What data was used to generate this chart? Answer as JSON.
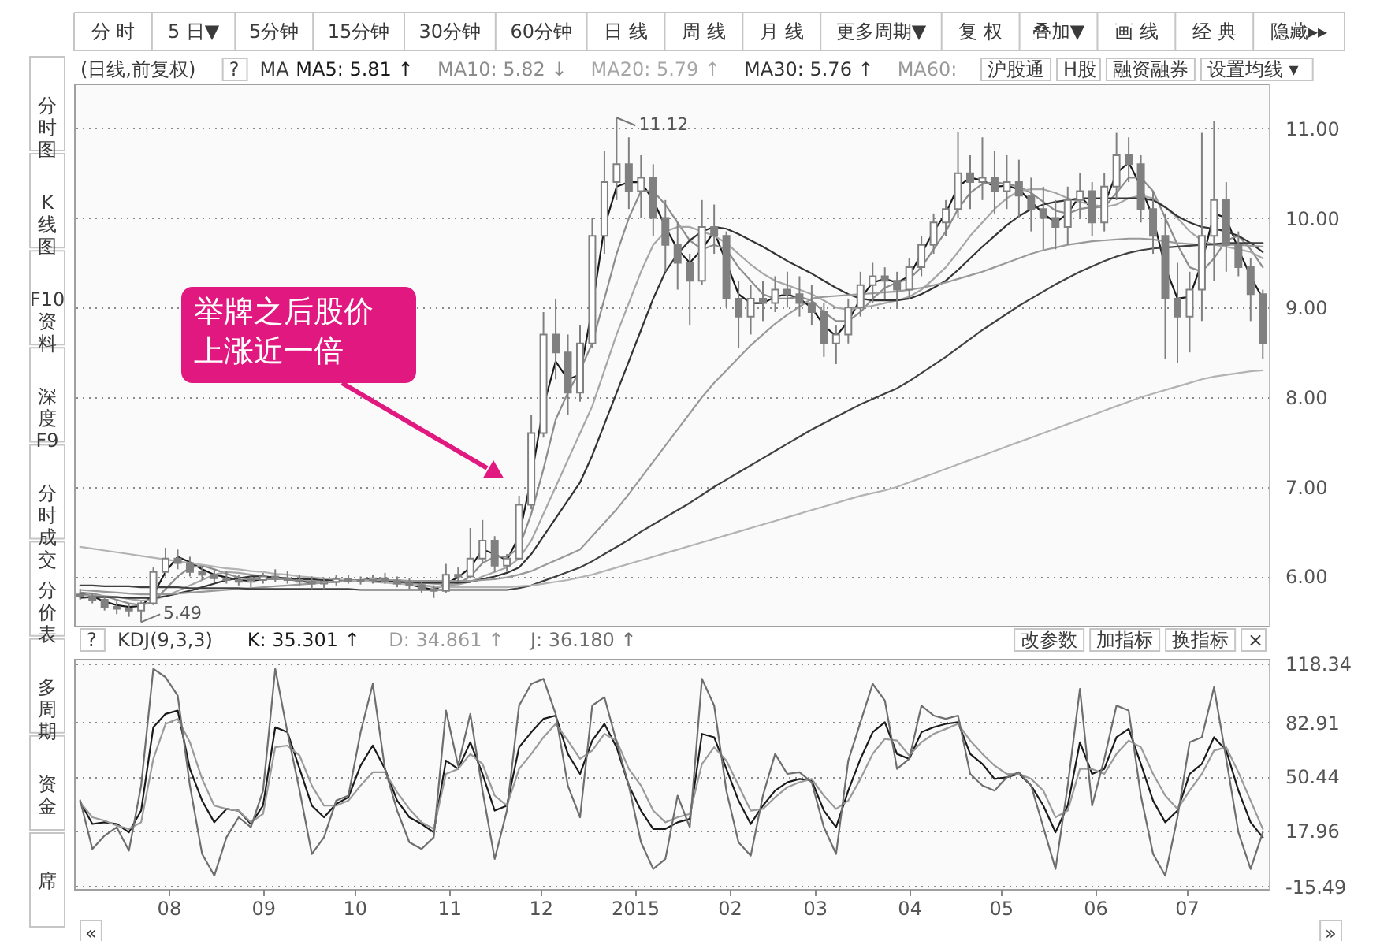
{
  "chart_data": [
    {
      "type": "other",
      "annotations": [
        "分 时",
        "5 日▼",
        "5分钟",
        "15分钟",
        "30分钟",
        "60分钟",
        "日 线",
        "周 线",
        "月 线",
        "更多周期▼",
        "复 权",
        "叠加▼",
        "画 线",
        "经 典",
        "隐藏▸▸"
      ]
    },
    {
      "type": "other",
      "annotations": [
        "分时图",
        "K线图",
        "F10资料",
        "深度F9",
        "分时成交",
        "分价表",
        "多周期",
        "资金",
        "席"
      ]
    },
    {
      "type": "candlestick",
      "title": "(日线,前复权)",
      "legend_title": "MA",
      "color": "#808080",
      "x": [
        "2014-07-03",
        "2014-07-07",
        "2014-07-11",
        "2014-07-15",
        "2014-07-19",
        "2014-07-23",
        "2014-07-27",
        "2014-07-31",
        "2014-08-04",
        "2014-08-08",
        "2014-08-12",
        "2014-08-16",
        "2014-08-20",
        "2014-08-24",
        "2014-08-28",
        "2014-09-01",
        "2014-09-05",
        "2014-09-09",
        "2014-09-13",
        "2014-09-17",
        "2014-09-21",
        "2014-09-25",
        "2014-09-29",
        "2014-10-03",
        "2014-10-07",
        "2014-10-11",
        "2014-10-15",
        "2014-10-19",
        "2014-10-23",
        "2014-10-27",
        "2014-10-31",
        "2014-11-04",
        "2014-11-08",
        "2014-11-12",
        "2014-11-16",
        "2014-11-20",
        "2014-11-24",
        "2014-11-28",
        "2014-12-02",
        "2014-12-06",
        "2014-12-10",
        "2014-12-14",
        "2014-12-18",
        "2014-12-22",
        "2014-12-26",
        "2014-12-30",
        "2015-01-03",
        "2015-01-07",
        "2015-01-11",
        "2015-01-15",
        "2015-01-19",
        "2015-01-23",
        "2015-01-27",
        "2015-01-31",
        "2015-02-04",
        "2015-02-08",
        "2015-02-12",
        "2015-02-16",
        "2015-02-20",
        "2015-02-24",
        "2015-02-28",
        "2015-03-04",
        "2015-03-08",
        "2015-03-12",
        "2015-03-16",
        "2015-03-20",
        "2015-03-24",
        "2015-03-28",
        "2015-04-01",
        "2015-04-05",
        "2015-04-09",
        "2015-04-13",
        "2015-04-17",
        "2015-04-21",
        "2015-04-25",
        "2015-04-29",
        "2015-05-03",
        "2015-05-07",
        "2015-05-11",
        "2015-05-15",
        "2015-05-19",
        "2015-05-23",
        "2015-05-27",
        "2015-05-31",
        "2015-06-04",
        "2015-06-08",
        "2015-06-12",
        "2015-06-16",
        "2015-06-20",
        "2015-06-24",
        "2015-06-28",
        "2015-07-02",
        "2015-07-06",
        "2015-07-10",
        "2015-07-14",
        "2015-07-18",
        "2015-07-22",
        "2015-07-26"
      ],
      "ohlc": [
        [
          5.8,
          5.86,
          5.74,
          5.78
        ],
        [
          5.78,
          5.82,
          5.7,
          5.74
        ],
        [
          5.74,
          5.78,
          5.62,
          5.66
        ],
        [
          5.66,
          5.72,
          5.58,
          5.64
        ],
        [
          5.64,
          5.7,
          5.55,
          5.62
        ],
        [
          5.62,
          5.72,
          5.49,
          5.7
        ],
        [
          5.7,
          6.1,
          5.68,
          6.05
        ],
        [
          6.05,
          6.32,
          6.0,
          6.2
        ],
        [
          6.2,
          6.3,
          6.08,
          6.15
        ],
        [
          6.15,
          6.22,
          6.0,
          6.05
        ],
        [
          6.05,
          6.12,
          5.96,
          6.02
        ],
        [
          6.02,
          6.08,
          5.94,
          5.98
        ],
        [
          5.98,
          6.06,
          5.92,
          5.96
        ],
        [
          5.96,
          6.02,
          5.9,
          5.94
        ],
        [
          5.94,
          6.0,
          5.88,
          5.96
        ],
        [
          5.96,
          6.04,
          5.92,
          6.0
        ],
        [
          6.0,
          6.08,
          5.94,
          5.98
        ],
        [
          5.98,
          6.06,
          5.92,
          5.96
        ],
        [
          5.96,
          6.02,
          5.9,
          5.94
        ],
        [
          5.94,
          6.0,
          5.86,
          5.92
        ],
        [
          5.92,
          5.98,
          5.86,
          5.94
        ],
        [
          5.94,
          6.02,
          5.9,
          5.97
        ],
        [
          5.97,
          6.02,
          5.92,
          5.95
        ],
        [
          5.95,
          6.0,
          5.91,
          5.96
        ],
        [
          5.96,
          6.02,
          5.92,
          5.98
        ],
        [
          5.98,
          6.04,
          5.92,
          5.95
        ],
        [
          5.95,
          6.0,
          5.88,
          5.92
        ],
        [
          5.92,
          5.98,
          5.86,
          5.9
        ],
        [
          5.9,
          5.94,
          5.82,
          5.86
        ],
        [
          5.86,
          5.9,
          5.76,
          5.84
        ],
        [
          5.84,
          6.14,
          5.82,
          6.02
        ],
        [
          6.02,
          6.1,
          5.94,
          6.0
        ],
        [
          6.0,
          6.54,
          5.98,
          6.2
        ],
        [
          6.2,
          6.63,
          6.15,
          6.4
        ],
        [
          6.4,
          6.45,
          6.05,
          6.12
        ],
        [
          6.12,
          6.25,
          6.05,
          6.2
        ],
        [
          6.2,
          6.9,
          6.18,
          6.8
        ],
        [
          6.8,
          7.8,
          6.75,
          7.6
        ],
        [
          7.6,
          8.95,
          7.55,
          8.7
        ],
        [
          8.7,
          9.1,
          8.2,
          8.5
        ],
        [
          8.5,
          8.7,
          7.8,
          8.05
        ],
        [
          8.05,
          8.8,
          7.95,
          8.6
        ],
        [
          8.6,
          10.0,
          8.55,
          9.8
        ],
        [
          9.8,
          10.75,
          9.6,
          10.4
        ],
        [
          10.4,
          11.12,
          10.2,
          10.6
        ],
        [
          10.6,
          10.9,
          10.1,
          10.3
        ],
        [
          10.3,
          10.7,
          10.0,
          10.45
        ],
        [
          10.45,
          10.6,
          9.8,
          10.0
        ],
        [
          10.0,
          10.2,
          9.4,
          9.7
        ],
        [
          9.7,
          9.95,
          9.2,
          9.5
        ],
        [
          9.5,
          9.6,
          8.8,
          9.3
        ],
        [
          9.3,
          10.2,
          9.25,
          9.9
        ],
        [
          9.9,
          10.15,
          9.6,
          9.8
        ],
        [
          9.8,
          9.85,
          9.0,
          9.1
        ],
        [
          9.1,
          9.3,
          8.55,
          8.9
        ],
        [
          8.9,
          9.25,
          8.7,
          9.1
        ],
        [
          9.1,
          9.3,
          8.85,
          9.05
        ],
        [
          9.05,
          9.35,
          8.95,
          9.2
        ],
        [
          9.2,
          9.4,
          9.0,
          9.15
        ],
        [
          9.15,
          9.35,
          8.9,
          9.05
        ],
        [
          9.05,
          9.25,
          8.8,
          8.95
        ],
        [
          8.95,
          9.05,
          8.45,
          8.6
        ],
        [
          8.6,
          8.8,
          8.37,
          8.7
        ],
        [
          8.7,
          9.1,
          8.6,
          9.0
        ],
        [
          9.0,
          9.4,
          8.9,
          9.25
        ],
        [
          9.25,
          9.5,
          9.05,
          9.35
        ],
        [
          9.35,
          9.45,
          9.1,
          9.3
        ],
        [
          9.3,
          9.4,
          9.0,
          9.2
        ],
        [
          9.2,
          9.55,
          9.1,
          9.45
        ],
        [
          9.45,
          9.8,
          9.35,
          9.7
        ],
        [
          9.7,
          10.05,
          9.6,
          9.95
        ],
        [
          9.95,
          10.2,
          9.8,
          10.1
        ],
        [
          10.1,
          10.96,
          10.0,
          10.5
        ],
        [
          10.5,
          10.7,
          10.1,
          10.4
        ],
        [
          10.4,
          10.9,
          10.2,
          10.45
        ],
        [
          10.45,
          10.75,
          10.05,
          10.3
        ],
        [
          10.3,
          10.7,
          10.1,
          10.4
        ],
        [
          10.4,
          10.65,
          10.0,
          10.25
        ],
        [
          10.25,
          10.45,
          9.85,
          10.1
        ],
        [
          10.1,
          10.35,
          9.65,
          10.0
        ],
        [
          10.0,
          10.2,
          9.65,
          9.9
        ],
        [
          9.9,
          10.35,
          9.7,
          10.2
        ],
        [
          10.2,
          10.5,
          10.0,
          10.3
        ],
        [
          10.3,
          10.4,
          9.8,
          9.95
        ],
        [
          9.95,
          10.5,
          9.85,
          10.35
        ],
        [
          10.35,
          10.95,
          10.2,
          10.7
        ],
        [
          10.7,
          10.9,
          10.4,
          10.6
        ],
        [
          10.6,
          10.7,
          9.95,
          10.1
        ],
        [
          10.1,
          10.3,
          9.6,
          9.8
        ],
        [
          9.8,
          10.05,
          8.43,
          9.1
        ],
        [
          9.1,
          9.5,
          8.38,
          8.9
        ],
        [
          8.9,
          9.4,
          8.5,
          9.2
        ],
        [
          9.2,
          10.95,
          8.85,
          9.8
        ],
        [
          9.8,
          11.08,
          9.3,
          10.2
        ],
        [
          10.2,
          10.4,
          9.4,
          9.7
        ],
        [
          9.7,
          9.85,
          9.35,
          9.45
        ],
        [
          9.45,
          9.55,
          8.85,
          9.15
        ],
        [
          9.15,
          9.2,
          8.43,
          8.6
        ]
      ],
      "series": [
        {
          "type": "line",
          "name": "MA5: 5.81 ↑",
          "color": "#1a1a1a",
          "values": [
            5.81,
            5.78,
            5.72,
            5.68,
            5.66,
            5.67,
            5.8,
            6.05,
            6.22,
            6.16,
            6.08,
            6.02,
            5.99,
            5.96,
            5.95,
            5.97,
            5.98,
            5.97,
            5.95,
            5.93,
            5.93,
            5.95,
            5.96,
            5.96,
            5.97,
            5.96,
            5.93,
            5.91,
            5.88,
            5.85,
            5.92,
            5.99,
            6.1,
            6.3,
            6.25,
            6.18,
            6.45,
            7.1,
            7.9,
            8.4,
            8.2,
            8.25,
            9.0,
            9.9,
            10.35,
            10.4,
            10.4,
            10.2,
            9.9,
            9.65,
            9.5,
            9.65,
            9.85,
            9.5,
            9.15,
            9.05,
            9.05,
            9.12,
            9.15,
            9.1,
            9.0,
            8.8,
            8.68,
            8.85,
            9.1,
            9.28,
            9.32,
            9.28,
            9.35,
            9.6,
            9.85,
            10.05,
            10.35,
            10.45,
            10.42,
            10.35,
            10.36,
            10.32,
            10.18,
            10.05,
            9.95,
            10.05,
            10.25,
            10.1,
            10.15,
            10.5,
            10.62,
            10.35,
            10.0,
            9.45,
            9.1,
            9.12,
            9.5,
            10.05,
            10.0,
            9.65,
            9.35,
            9.1
          ]
        },
        {
          "type": "line",
          "name": "MA10: 5.82 ↓",
          "color": "#8c8c8c",
          "values": [
            5.82,
            5.81,
            5.78,
            5.74,
            5.7,
            5.68,
            5.72,
            5.86,
            6.0,
            6.1,
            6.12,
            6.08,
            6.03,
            5.99,
            5.97,
            5.97,
            5.97,
            5.97,
            5.96,
            5.95,
            5.94,
            5.94,
            5.95,
            5.96,
            5.96,
            5.96,
            5.95,
            5.93,
            5.91,
            5.88,
            5.89,
            5.92,
            6.0,
            6.15,
            6.22,
            6.22,
            6.32,
            6.7,
            7.2,
            7.75,
            8.05,
            8.3,
            8.6,
            9.1,
            9.6,
            10.0,
            10.3,
            10.3,
            10.15,
            9.95,
            9.75,
            9.65,
            9.7,
            9.65,
            9.45,
            9.3,
            9.15,
            9.1,
            9.1,
            9.12,
            9.08,
            8.95,
            8.85,
            8.85,
            8.95,
            9.1,
            9.22,
            9.28,
            9.32,
            9.45,
            9.65,
            9.85,
            10.1,
            10.28,
            10.38,
            10.4,
            10.38,
            10.35,
            10.28,
            10.18,
            10.08,
            10.05,
            10.1,
            10.12,
            10.12,
            10.28,
            10.45,
            10.45,
            10.3,
            10.0,
            9.7,
            9.45,
            9.4,
            9.55,
            9.75,
            9.8,
            9.65,
            9.45
          ]
        },
        {
          "type": "line",
          "name": "MA20: 5.79 ↑",
          "color": "#a6a6a6",
          "values": [
            5.79,
            5.79,
            5.78,
            5.77,
            5.75,
            5.73,
            5.74,
            5.78,
            5.84,
            5.9,
            5.96,
            6.02,
            6.05,
            6.04,
            6.02,
            6.0,
            5.98,
            5.97,
            5.96,
            5.96,
            5.95,
            5.95,
            5.95,
            5.95,
            5.95,
            5.95,
            5.95,
            5.94,
            5.93,
            5.92,
            5.91,
            5.91,
            5.94,
            6.0,
            6.05,
            6.1,
            6.2,
            6.4,
            6.7,
            7.0,
            7.3,
            7.6,
            7.9,
            8.3,
            8.7,
            9.05,
            9.4,
            9.7,
            9.85,
            9.9,
            9.9,
            9.85,
            9.8,
            9.72,
            9.6,
            9.48,
            9.38,
            9.3,
            9.25,
            9.2,
            9.15,
            9.08,
            9.0,
            8.98,
            9.0,
            9.02,
            9.05,
            9.08,
            9.12,
            9.2,
            9.32,
            9.45,
            9.62,
            9.8,
            9.95,
            10.1,
            10.22,
            10.3,
            10.32,
            10.32,
            10.28,
            10.22,
            10.18,
            10.15,
            10.12,
            10.15,
            10.22,
            10.25,
            10.22,
            10.12,
            10.0,
            9.85,
            9.75,
            9.7,
            9.68,
            9.65,
            9.62,
            9.55
          ]
        },
        {
          "type": "line",
          "name": "MA30: 5.76 ↑",
          "color": "#333333",
          "values": [
            5.76,
            5.77,
            5.77,
            5.77,
            5.76,
            5.76,
            5.76,
            5.78,
            5.81,
            5.84,
            5.88,
            5.92,
            5.96,
            5.98,
            6.0,
            6.0,
            5.99,
            5.98,
            5.97,
            5.97,
            5.96,
            5.96,
            5.95,
            5.95,
            5.95,
            5.95,
            5.94,
            5.94,
            5.93,
            5.93,
            5.93,
            5.93,
            5.94,
            5.97,
            6.0,
            6.04,
            6.1,
            6.25,
            6.45,
            6.65,
            6.85,
            7.05,
            7.35,
            7.7,
            8.05,
            8.4,
            8.75,
            9.1,
            9.4,
            9.6,
            9.75,
            9.85,
            9.9,
            9.88,
            9.82,
            9.75,
            9.68,
            9.6,
            9.52,
            9.45,
            9.38,
            9.3,
            9.22,
            9.15,
            9.1,
            9.08,
            9.08,
            9.08,
            9.1,
            9.15,
            9.22,
            9.3,
            9.42,
            9.55,
            9.68,
            9.8,
            9.92,
            10.02,
            10.1,
            10.15,
            10.18,
            10.2,
            10.22,
            10.22,
            10.22,
            10.22,
            10.22,
            10.22,
            10.2,
            10.12,
            10.02,
            9.95,
            9.9,
            9.88,
            9.85,
            9.8,
            9.72,
            9.62
          ]
        },
        {
          "type": "line",
          "name": "MA60:",
          "color": "#999999",
          "values": [
            5.85,
            5.84,
            5.83,
            5.82,
            5.81,
            5.8,
            5.8,
            5.8,
            5.81,
            5.82,
            5.83,
            5.84,
            5.85,
            5.86,
            5.87,
            5.88,
            5.89,
            5.9,
            5.91,
            5.92,
            5.93,
            5.94,
            5.95,
            5.95,
            5.96,
            5.96,
            5.96,
            5.95,
            5.95,
            5.95,
            5.95,
            5.95,
            5.95,
            5.96,
            5.97,
            5.99,
            6.02,
            6.06,
            6.12,
            6.18,
            6.24,
            6.3,
            6.45,
            6.6,
            6.75,
            6.92,
            7.1,
            7.28,
            7.46,
            7.64,
            7.82,
            8.0,
            8.16,
            8.3,
            8.44,
            8.58,
            8.7,
            8.82,
            8.92,
            9.01,
            9.1,
            9.12,
            9.13,
            9.14,
            9.15,
            9.16,
            9.17,
            9.18,
            9.2,
            9.22,
            9.25,
            9.28,
            9.32,
            9.36,
            9.4,
            9.45,
            9.5,
            9.55,
            9.6,
            9.64,
            9.67,
            9.7,
            9.72,
            9.74,
            9.75,
            9.76,
            9.77,
            9.77,
            9.76,
            9.74,
            9.72,
            9.71,
            9.7,
            9.7,
            9.7,
            9.7,
            9.69,
            9.68
          ]
        },
        {
          "type": "line",
          "color": "#404040",
          "values": [
            5.9,
            5.9,
            5.89,
            5.89,
            5.89,
            5.88,
            5.88,
            5.88,
            5.88,
            5.87,
            5.87,
            5.87,
            5.87,
            5.87,
            5.86,
            5.86,
            5.86,
            5.86,
            5.86,
            5.86,
            5.86,
            5.86,
            5.86,
            5.85,
            5.85,
            5.85,
            5.85,
            5.85,
            5.85,
            5.85,
            5.85,
            5.85,
            5.85,
            5.85,
            5.85,
            5.85,
            5.87,
            5.9,
            5.95,
            6.0,
            6.05,
            6.1,
            6.17,
            6.25,
            6.33,
            6.41,
            6.5,
            6.58,
            6.66,
            6.74,
            6.82,
            6.91,
            7.0,
            7.08,
            7.16,
            7.24,
            7.32,
            7.4,
            7.48,
            7.56,
            7.64,
            7.71,
            7.78,
            7.85,
            7.92,
            7.98,
            8.04,
            8.1,
            8.18,
            8.27,
            8.36,
            8.45,
            8.55,
            8.65,
            8.75,
            8.84,
            8.93,
            9.02,
            9.1,
            9.18,
            9.26,
            9.33,
            9.4,
            9.46,
            9.52,
            9.57,
            9.61,
            9.64,
            9.66,
            9.67,
            9.68,
            9.69,
            9.7,
            9.71,
            9.72,
            9.72,
            9.72,
            9.72
          ]
        },
        {
          "type": "line",
          "color": "#b3b3b3",
          "values": [
            6.33,
            6.31,
            6.29,
            6.27,
            6.25,
            6.23,
            6.21,
            6.19,
            6.17,
            6.15,
            6.13,
            6.11,
            6.09,
            6.08,
            6.06,
            6.05,
            6.03,
            6.02,
            6.0,
            5.99,
            5.98,
            5.97,
            5.96,
            5.95,
            5.94,
            5.93,
            5.92,
            5.91,
            5.9,
            5.89,
            5.88,
            5.88,
            5.88,
            5.88,
            5.88,
            5.88,
            5.89,
            5.9,
            5.92,
            5.94,
            5.96,
            5.99,
            6.02,
            6.06,
            6.1,
            6.14,
            6.18,
            6.22,
            6.26,
            6.3,
            6.34,
            6.38,
            6.42,
            6.46,
            6.5,
            6.54,
            6.58,
            6.62,
            6.66,
            6.7,
            6.74,
            6.78,
            6.82,
            6.86,
            6.9,
            6.93,
            6.96,
            7.0,
            7.05,
            7.1,
            7.15,
            7.2,
            7.25,
            7.3,
            7.35,
            7.4,
            7.45,
            7.5,
            7.55,
            7.6,
            7.65,
            7.7,
            7.75,
            7.8,
            7.85,
            7.9,
            7.95,
            8.0,
            8.04,
            8.08,
            8.12,
            8.16,
            8.2,
            8.23,
            8.25,
            8.27,
            8.29,
            8.3
          ]
        }
      ],
      "xlim": [
        "2014-07-01",
        "2015-07-28"
      ],
      "ylim": [
        5.45,
        11.5
      ],
      "yticks": [
        {
          "value": 6,
          "label": "6.00"
        },
        {
          "value": 7,
          "label": "7.00"
        },
        {
          "value": 8,
          "label": "8.00"
        },
        {
          "value": 9,
          "label": "9.00"
        },
        {
          "value": 10,
          "label": "10.00"
        },
        {
          "value": 11,
          "label": "11.00"
        }
      ],
      "grid": "y",
      "legend": "top left",
      "tick_labels": "y",
      "annotations": [
        "举牌之后股价上涨近一倍",
        "?",
        "沪股通",
        "H股",
        "融资融券",
        "设置均线 ▾",
        {
          "text": "11.12",
          "x": "2014-12-26",
          "y": 11.12
        },
        {
          "text": "5.49",
          "x": "2014-07-23",
          "y": 5.49
        }
      ]
    },
    {
      "type": "line",
      "title": "KDJ(9,3,3)",
      "x": [
        "2014-07-03",
        "2014-07-07",
        "2014-07-11",
        "2014-07-15",
        "2014-07-19",
        "2014-07-23",
        "2014-07-27",
        "2014-07-31",
        "2014-08-04",
        "2014-08-08",
        "2014-08-12",
        "2014-08-16",
        "2014-08-20",
        "2014-08-24",
        "2014-08-28",
        "2014-09-01",
        "2014-09-05",
        "2014-09-09",
        "2014-09-13",
        "2014-09-17",
        "2014-09-21",
        "2014-09-25",
        "2014-09-29",
        "2014-10-03",
        "2014-10-07",
        "2014-10-11",
        "2014-10-15",
        "2014-10-19",
        "2014-10-23",
        "2014-10-27",
        "2014-10-31",
        "2014-11-04",
        "2014-11-08",
        "2014-11-12",
        "2014-11-16",
        "2014-11-20",
        "2014-11-24",
        "2014-11-28",
        "2014-12-02",
        "2014-12-06",
        "2014-12-10",
        "2014-12-14",
        "2014-12-18",
        "2014-12-22",
        "2014-12-26",
        "2014-12-30",
        "2015-01-03",
        "2015-01-07",
        "2015-01-11",
        "2015-01-15",
        "2015-01-19",
        "2015-01-23",
        "2015-01-27",
        "2015-01-31",
        "2015-02-04",
        "2015-02-08",
        "2015-02-12",
        "2015-02-16",
        "2015-02-20",
        "2015-02-24",
        "2015-02-28",
        "2015-03-04",
        "2015-03-08",
        "2015-03-12",
        "2015-03-16",
        "2015-03-20",
        "2015-03-24",
        "2015-03-28",
        "2015-04-01",
        "2015-04-05",
        "2015-04-09",
        "2015-04-13",
        "2015-04-17",
        "2015-04-21",
        "2015-04-25",
        "2015-04-29",
        "2015-05-03",
        "2015-05-07",
        "2015-05-11",
        "2015-05-15",
        "2015-05-19",
        "2015-05-23",
        "2015-05-27",
        "2015-05-31",
        "2015-06-04",
        "2015-06-08",
        "2015-06-12",
        "2015-06-16",
        "2015-06-20",
        "2015-06-24",
        "2015-06-28",
        "2015-07-02",
        "2015-07-06",
        "2015-07-10",
        "2015-07-14",
        "2015-07-18",
        "2015-07-22",
        "2015-07-26"
      ],
      "series": [
        {
          "name": "K: 35.301 ↑",
          "color": "#1a1a1a",
          "values": [
            35.301,
            22,
            23,
            22,
            17,
            30,
            80,
            88,
            90,
            55,
            36,
            23,
            31,
            30,
            22,
            33,
            80,
            77,
            55,
            33,
            26,
            34,
            38,
            57,
            69,
            55,
            36,
            26,
            22,
            17,
            60,
            55,
            71,
            52,
            30,
            33,
            68,
            77,
            85,
            87,
            64,
            52,
            72,
            82,
            68,
            45,
            30,
            19,
            19,
            23,
            25,
            76,
            74,
            55,
            36,
            22,
            33,
            42,
            47,
            49,
            48,
            30,
            20,
            42,
            61,
            77,
            83,
            64,
            61,
            77,
            80,
            82,
            83,
            64,
            58,
            49,
            50,
            52,
            45,
            33,
            17,
            33,
            71,
            52,
            55,
            74,
            79,
            58,
            36,
            23,
            30,
            52,
            58,
            74,
            66,
            42,
            23,
            14
          ]
        },
        {
          "name": "D: 34.861 ↑",
          "color": "#9a9a9a",
          "values": [
            34.861,
            26,
            24,
            21,
            19,
            23,
            61,
            82,
            85,
            71,
            49,
            33,
            31,
            30,
            23,
            28,
            68,
            69,
            63,
            45,
            33,
            33,
            36,
            45,
            53,
            53,
            41,
            31,
            23,
            19,
            52,
            55,
            64,
            58,
            39,
            33,
            55,
            64,
            74,
            82,
            72,
            61,
            66,
            76,
            72,
            55,
            45,
            30,
            23,
            26,
            28,
            58,
            68,
            60,
            45,
            30,
            31,
            38,
            44,
            47,
            49,
            39,
            31,
            36,
            49,
            64,
            73,
            72,
            63,
            71,
            76,
            79,
            82,
            72,
            64,
            57,
            52,
            52,
            49,
            42,
            26,
            30,
            55,
            55,
            52,
            64,
            72,
            68,
            52,
            39,
            31,
            42,
            52,
            66,
            68,
            53,
            36,
            19
          ]
        },
        {
          "name": "J: 36.180 ↑",
          "color": "#6e6e6e",
          "values": [
            36.18,
            7,
            15,
            20,
            6,
            45,
            115,
            110,
            99,
            45,
            4,
            -9,
            14,
            26,
            20,
            42,
            115,
            77,
            42,
            4,
            14,
            36,
            39,
            77,
            106,
            55,
            30,
            11,
            7,
            14,
            90,
            57,
            88,
            42,
            1,
            30,
            93,
            106,
            109,
            88,
            45,
            26,
            93,
            98,
            71,
            45,
            11,
            -5,
            1,
            39,
            20,
            109,
            93,
            42,
            11,
            3,
            39,
            64,
            52,
            53,
            47,
            20,
            4,
            60,
            83,
            106,
            96,
            55,
            61,
            93,
            87,
            85,
            87,
            52,
            45,
            42,
            50,
            53,
            45,
            20,
            -5,
            45,
            103,
            33,
            61,
            93,
            90,
            39,
            4,
            -9,
            26,
            71,
            74,
            104,
            61,
            17,
            -5,
            17
          ]
        }
      ],
      "xlim": [
        "2014-07-01",
        "2015-07-28"
      ],
      "xticks": [
        {
          "value": "2014-08-01",
          "label": "08"
        },
        {
          "value": "2014-09-01",
          "label": "09"
        },
        {
          "value": "2014-10-01",
          "label": "10"
        },
        {
          "value": "2014-11-01",
          "label": "11"
        },
        {
          "value": "2014-12-01",
          "label": "12"
        },
        {
          "value": "2015-01-01",
          "label": "2015"
        },
        {
          "value": "2015-02-01",
          "label": "02"
        },
        {
          "value": "2015-03-01",
          "label": "03"
        },
        {
          "value": "2015-04-01",
          "label": "04"
        },
        {
          "value": "2015-05-01",
          "label": "05"
        },
        {
          "value": "2015-06-01",
          "label": "06"
        },
        {
          "value": "2015-07-01",
          "label": "07"
        }
      ],
      "ylim": [
        -17,
        121
      ],
      "yticks": [
        -15.49,
        17.96,
        50.44,
        82.91,
        118.34
      ],
      "grid": "y",
      "legend": "top left",
      "annotations": [
        "?",
        "改参数",
        "加指标",
        "换指标",
        "×"
      ]
    },
    {
      "type": "other",
      "annotations": [
        "«",
        "»"
      ]
    }
  ]
}
